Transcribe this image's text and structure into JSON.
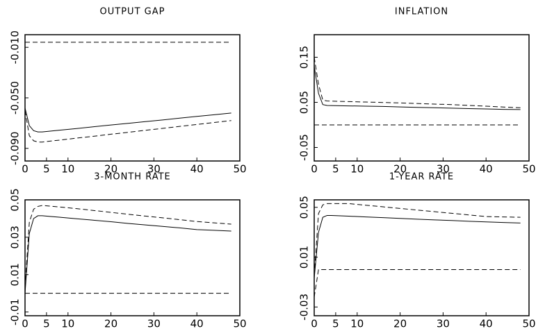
{
  "chart_data": [
    {
      "type": "line",
      "title": "OUTPUT GAP",
      "x": [
        0,
        1,
        2,
        3,
        4,
        6,
        8,
        12,
        16,
        20,
        24,
        28,
        32,
        36,
        40,
        44,
        48
      ],
      "xlim": [
        0,
        50
      ],
      "xticks": [
        0,
        5,
        10,
        20,
        30,
        40,
        50
      ],
      "ylim": [
        -0.1,
        0.0
      ],
      "yticks": [
        {
          "value": -0.09,
          "label": "-0.090"
        },
        {
          "value": -0.05,
          "label": "-0.050"
        },
        {
          "value": -0.01,
          "label": "-0.010"
        }
      ],
      "series": [
        {
          "color": "#000000",
          "dashed": false,
          "values": [
            -0.058,
            -0.072,
            -0.076,
            -0.077,
            -0.077,
            -0.0763,
            -0.0756,
            -0.0743,
            -0.0729,
            -0.0715,
            -0.0702,
            -0.0688,
            -0.0675,
            -0.0661,
            -0.0647,
            -0.0634,
            -0.062
          ]
        },
        {
          "color": "#000000",
          "dashed": true,
          "values": [
            -0.006,
            -0.006,
            -0.006,
            -0.006,
            -0.006,
            -0.006,
            -0.006,
            -0.006,
            -0.006,
            -0.006,
            -0.006,
            -0.006,
            -0.006,
            -0.006,
            -0.006,
            -0.006,
            -0.006
          ]
        },
        {
          "color": "#000000",
          "dashed": true,
          "values": [
            -0.06,
            -0.08,
            -0.084,
            -0.085,
            -0.085,
            -0.0842,
            -0.0835,
            -0.0819,
            -0.0804,
            -0.0788,
            -0.0773,
            -0.0757,
            -0.0742,
            -0.0726,
            -0.0711,
            -0.0695,
            -0.068
          ]
        }
      ]
    },
    {
      "type": "line",
      "title": "INFLATION",
      "x": [
        0,
        1,
        2,
        3,
        4,
        6,
        8,
        12,
        16,
        20,
        24,
        28,
        32,
        36,
        40,
        44,
        48
      ],
      "xlim": [
        0,
        50
      ],
      "xticks": [
        0,
        5,
        10,
        20,
        30,
        40,
        50
      ],
      "ylim": [
        -0.08,
        0.2
      ],
      "yticks": [
        -0.05,
        0.05,
        0.15
      ],
      "series": [
        {
          "color": "#000000",
          "dashed": false,
          "values": [
            0.13,
            0.07,
            0.045,
            0.043,
            0.0428,
            0.0425,
            0.0422,
            0.0416,
            0.041,
            0.0398,
            0.0389,
            0.038,
            0.0371,
            0.0362,
            0.0353,
            0.0345,
            0.034
          ]
        },
        {
          "color": "#000000",
          "dashed": true,
          "values": [
            0.15,
            0.09,
            0.055,
            0.053,
            0.0527,
            0.0522,
            0.0517,
            0.0507,
            0.0497,
            0.0487,
            0.0475,
            0.0462,
            0.045,
            0.0432,
            0.0415,
            0.0397,
            0.038
          ]
        },
        {
          "color": "#000000",
          "dashed": true,
          "values": [
            0,
            0,
            0,
            0,
            0,
            0,
            0,
            0,
            0,
            0,
            0,
            0,
            0,
            0,
            0,
            0,
            0
          ]
        }
      ]
    },
    {
      "type": "line",
      "title": "3-MONTH RATE",
      "x": [
        0,
        1,
        2,
        3,
        4,
        6,
        8,
        12,
        16,
        20,
        24,
        28,
        32,
        36,
        40,
        44,
        48
      ],
      "xlim": [
        0,
        50
      ],
      "xticks": [
        0,
        5,
        10,
        20,
        30,
        40,
        50
      ],
      "ylim": [
        -0.012,
        0.05
      ],
      "yticks": [
        -0.01,
        0.01,
        0.03,
        0.05
      ],
      "series": [
        {
          "color": "#000000",
          "dashed": false,
          "values": [
            0,
            0.032,
            0.04,
            0.0415,
            0.0415,
            0.0411,
            0.0407,
            0.0399,
            0.0391,
            0.0383,
            0.0374,
            0.0366,
            0.0358,
            0.035,
            0.0341,
            0.0337,
            0.0333
          ]
        },
        {
          "color": "#000000",
          "dashed": true,
          "values": [
            0.003,
            0.038,
            0.045,
            0.0465,
            0.047,
            0.0466,
            0.0462,
            0.0453,
            0.0443,
            0.0433,
            0.0423,
            0.0413,
            0.0404,
            0.0394,
            0.0384,
            0.0377,
            0.037
          ]
        },
        {
          "color": "#000000",
          "dashed": true,
          "values": [
            0,
            0,
            0,
            0,
            0,
            0,
            0,
            0,
            0,
            0,
            0,
            0,
            0,
            0,
            0,
            0,
            0
          ]
        }
      ]
    },
    {
      "type": "line",
      "title": "1-YEAR RATE",
      "x": [
        0,
        1,
        2,
        3,
        4,
        6,
        8,
        12,
        16,
        20,
        24,
        28,
        32,
        36,
        40,
        44,
        48
      ],
      "xlim": [
        0,
        50
      ],
      "xticks": [
        0,
        5,
        10,
        20,
        30,
        40,
        50
      ],
      "ylim": [
        -0.037,
        0.056
      ],
      "yticks": [
        -0.03,
        0.01,
        0.05
      ],
      "series": [
        {
          "color": "#000000",
          "dashed": false,
          "values": [
            -0.007,
            0.03,
            0.042,
            0.0435,
            0.0435,
            0.0432,
            0.0429,
            0.0423,
            0.0417,
            0.0411,
            0.0405,
            0.0399,
            0.0394,
            0.0388,
            0.0383,
            0.0378,
            0.0374
          ]
        },
        {
          "color": "#000000",
          "dashed": true,
          "values": [
            -0.005,
            0.045,
            0.052,
            0.053,
            0.053,
            0.053,
            0.053,
            0.0517,
            0.0504,
            0.0491,
            0.0478,
            0.0465,
            0.0452,
            0.0439,
            0.0426,
            0.0423,
            0.042
          ]
        },
        {
          "color": "#000000",
          "dashed": true,
          "values": [
            -0.022,
            0,
            0,
            0,
            0,
            0,
            0,
            0,
            0,
            0,
            0,
            0,
            0,
            0,
            0,
            0,
            0
          ]
        }
      ]
    }
  ]
}
